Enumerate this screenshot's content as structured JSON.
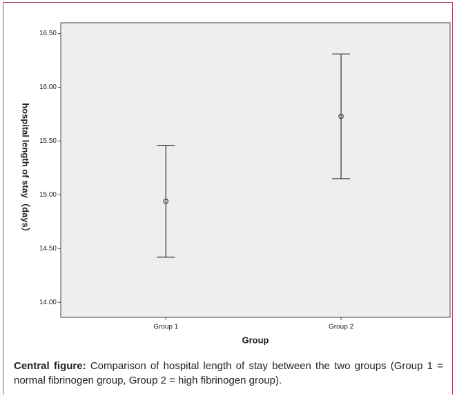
{
  "chart_data": {
    "type": "errorbar",
    "x_label": "Group",
    "y_label": "hospital length of stay（days）",
    "categories": [
      "Group 1",
      "Group 2"
    ],
    "values": [
      14.94,
      15.73
    ],
    "errors": [
      0.52,
      0.58
    ],
    "color": "#333333",
    "ylim": [
      13.86,
      16.6
    ],
    "yticks": [
      {
        "value": 14,
        "label": "14.00"
      },
      {
        "value": 14.5,
        "label": "14.50"
      },
      {
        "value": 15,
        "label": "15.00"
      },
      {
        "value": 15.5,
        "label": "15.50"
      },
      {
        "value": 16,
        "label": "16.00"
      },
      {
        "value": 16.5,
        "label": "16.50"
      }
    ],
    "grid": false
  },
  "caption": {
    "label": "Central figure:",
    "text": "Comparison of hospital length of stay between the two groups (Group 1 = normal fibrinogen group, Group 2 = high fibrinogen group)."
  }
}
